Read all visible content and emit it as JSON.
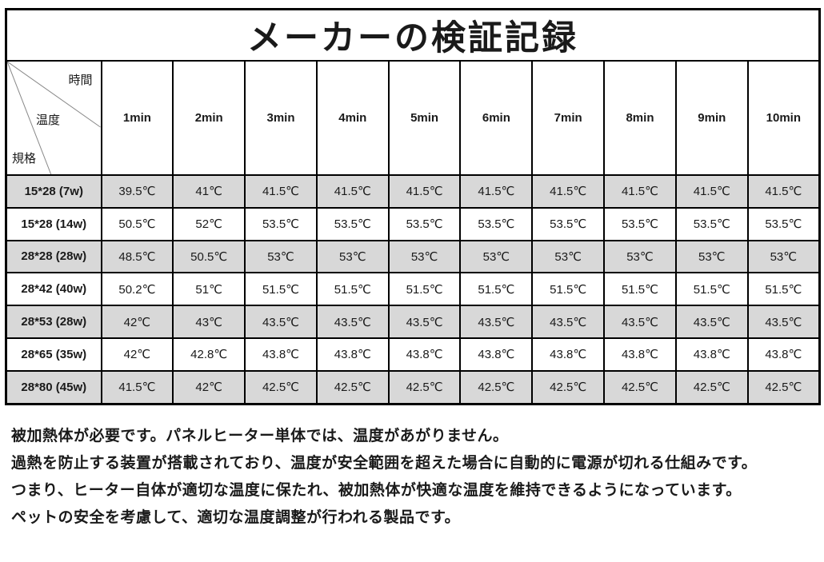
{
  "title": "メーカーの検証記録",
  "table": {
    "corner": {
      "time": "時間",
      "temperature": "温度",
      "spec": "規格"
    },
    "time_headers": [
      "1min",
      "2min",
      "3min",
      "4min",
      "5min",
      "6min",
      "7min",
      "8min",
      "9min",
      "10min"
    ],
    "rows": [
      {
        "spec": "15*28 (7w)",
        "shaded": true,
        "values": [
          "39.5℃",
          "41℃",
          "41.5℃",
          "41.5℃",
          "41.5℃",
          "41.5℃",
          "41.5℃",
          "41.5℃",
          "41.5℃",
          "41.5℃"
        ]
      },
      {
        "spec": "15*28 (14w)",
        "shaded": false,
        "values": [
          "50.5℃",
          "52℃",
          "53.5℃",
          "53.5℃",
          "53.5℃",
          "53.5℃",
          "53.5℃",
          "53.5℃",
          "53.5℃",
          "53.5℃"
        ]
      },
      {
        "spec": "28*28 (28w)",
        "shaded": true,
        "values": [
          "48.5℃",
          "50.5℃",
          "53℃",
          "53℃",
          "53℃",
          "53℃",
          "53℃",
          "53℃",
          "53℃",
          "53℃"
        ]
      },
      {
        "spec": "28*42 (40w)",
        "shaded": false,
        "values": [
          "50.2℃",
          "51℃",
          "51.5℃",
          "51.5℃",
          "51.5℃",
          "51.5℃",
          "51.5℃",
          "51.5℃",
          "51.5℃",
          "51.5℃"
        ]
      },
      {
        "spec": "28*53 (28w)",
        "shaded": true,
        "values": [
          "42℃",
          "43℃",
          "43.5℃",
          "43.5℃",
          "43.5℃",
          "43.5℃",
          "43.5℃",
          "43.5℃",
          "43.5℃",
          "43.5℃"
        ]
      },
      {
        "spec": "28*65 (35w)",
        "shaded": false,
        "values": [
          "42℃",
          "42.8℃",
          "43.8℃",
          "43.8℃",
          "43.8℃",
          "43.8℃",
          "43.8℃",
          "43.8℃",
          "43.8℃",
          "43.8℃"
        ]
      },
      {
        "spec": "28*80 (45w)",
        "shaded": true,
        "values": [
          "41.5℃",
          "42℃",
          "42.5℃",
          "42.5℃",
          "42.5℃",
          "42.5℃",
          "42.5℃",
          "42.5℃",
          "42.5℃",
          "42.5℃"
        ]
      }
    ]
  },
  "notes": [
    "被加熱体が必要です。パネルヒーター単体では、温度があがりません。",
    "過熱を防止する装置が搭載されており、温度が安全範囲を超えた場合に自動的に電源が切れる仕組みです。",
    "つまり、ヒーター自体が適切な温度に保たれ、被加熱体が快適な温度を維持できるようになっています。",
    "ペットの安全を考慮して、適切な温度調整が行われる製品です。"
  ],
  "colors": {
    "shaded_row": "#d8d8d8",
    "border": "#000000",
    "diagonal_line": "#888888"
  }
}
